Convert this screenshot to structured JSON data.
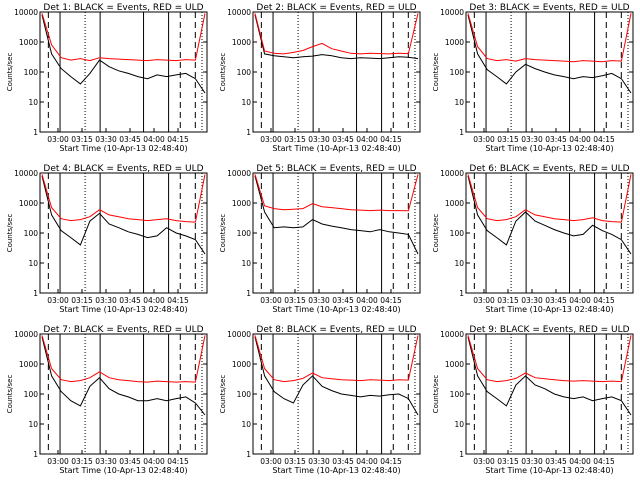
{
  "colors": {
    "events": "#000000",
    "uld": "#ff0000",
    "background": "#ffffff"
  },
  "chart_data": [
    {
      "type": "line",
      "title": "Det 1: BLACK = Events, RED = ULD",
      "xlabel": "Start Time (10-Apr-13 02:48:40)",
      "ylabel": "Counts/sec",
      "x_ticks": [
        "03:00",
        "03:15",
        "03:30",
        "03:45",
        "04:00",
        "04:15"
      ],
      "y_ticks": [
        "1",
        "10",
        "100",
        "1000",
        "10000"
      ],
      "yscale": "log",
      "ylim": [
        1,
        10000
      ],
      "series": [
        {
          "name": "Events",
          "values": [
            8000,
            400,
            130,
            70,
            40,
            90,
            250,
            150,
            110,
            90,
            70,
            60,
            80,
            70,
            80,
            90,
            60,
            20
          ]
        },
        {
          "name": "ULD",
          "values": [
            9000,
            800,
            300,
            250,
            280,
            240,
            300,
            280,
            270,
            260,
            250,
            240,
            260,
            250,
            240,
            260,
            250,
            9000
          ]
        }
      ]
    },
    {
      "type": "line",
      "title": "Det 2: BLACK = Events, RED = ULD",
      "xlabel": "Start Time (10-Apr-13 02:48:40)",
      "ylabel": "Counts/sec",
      "x_ticks": [
        "03:00",
        "03:15",
        "03:30",
        "03:45",
        "04:00",
        "04:15"
      ],
      "y_ticks": [
        "1",
        "10",
        "100",
        "1000",
        "10000"
      ],
      "yscale": "log",
      "ylim": [
        1,
        10000
      ],
      "series": [
        {
          "name": "Events",
          "values": [
            8000,
            400,
            350,
            320,
            300,
            320,
            340,
            380,
            350,
            300,
            280,
            300,
            290,
            280,
            300,
            320,
            310,
            280
          ]
        },
        {
          "name": "ULD",
          "values": [
            9000,
            500,
            420,
            400,
            450,
            520,
            700,
            900,
            600,
            500,
            420,
            400,
            420,
            410,
            400,
            420,
            410,
            9000
          ]
        }
      ]
    },
    {
      "type": "line",
      "title": "Det 3: BLACK = Events, RED = ULD",
      "xlabel": "Start Time (10-Apr-13 02:48:40)",
      "ylabel": "Counts/sec",
      "x_ticks": [
        "03:00",
        "03:15",
        "03:30",
        "03:45",
        "04:00",
        "04:15"
      ],
      "y_ticks": [
        "1",
        "10",
        "100",
        "1000",
        "10000"
      ],
      "yscale": "log",
      "ylim": [
        1,
        10000
      ],
      "series": [
        {
          "name": "Events",
          "values": [
            8000,
            400,
            120,
            70,
            40,
            100,
            180,
            130,
            100,
            80,
            70,
            60,
            70,
            65,
            75,
            90,
            60,
            20
          ]
        },
        {
          "name": "ULD",
          "values": [
            9000,
            700,
            280,
            240,
            260,
            230,
            280,
            260,
            250,
            240,
            230,
            220,
            240,
            230,
            220,
            240,
            230,
            9000
          ]
        }
      ]
    },
    {
      "type": "line",
      "title": "Det 4: BLACK = Events, RED = ULD",
      "xlabel": "Start Time (10-Apr-13 02:48:40)",
      "ylabel": "Counts/sec",
      "x_ticks": [
        "03:00",
        "03:15",
        "03:30",
        "03:45",
        "04:00",
        "04:15"
      ],
      "y_ticks": [
        "1",
        "10",
        "100",
        "1000",
        "10000"
      ],
      "yscale": "log",
      "ylim": [
        1,
        10000
      ],
      "series": [
        {
          "name": "Events",
          "values": [
            8000,
            400,
            120,
            70,
            40,
            250,
            450,
            200,
            150,
            110,
            90,
            70,
            80,
            150,
            100,
            80,
            60,
            20
          ]
        },
        {
          "name": "ULD",
          "values": [
            9000,
            700,
            300,
            260,
            280,
            350,
            600,
            400,
            350,
            300,
            280,
            260,
            280,
            300,
            260,
            240,
            230,
            9000
          ]
        }
      ]
    },
    {
      "type": "line",
      "title": "Det 5: BLACK = Events, RED = ULD",
      "xlabel": "Start Time (10-Apr-13 02:48:40)",
      "ylabel": "Counts/sec",
      "x_ticks": [
        "03:00",
        "03:15",
        "03:30",
        "03:45",
        "04:00",
        "04:15"
      ],
      "y_ticks": [
        "1",
        "10",
        "100",
        "1000",
        "10000"
      ],
      "yscale": "log",
      "ylim": [
        1,
        10000
      ],
      "series": [
        {
          "name": "Events",
          "values": [
            8000,
            500,
            150,
            160,
            150,
            160,
            280,
            200,
            170,
            150,
            130,
            120,
            110,
            130,
            110,
            100,
            90,
            20
          ]
        },
        {
          "name": "ULD",
          "values": [
            9000,
            800,
            650,
            600,
            620,
            650,
            950,
            750,
            700,
            650,
            600,
            580,
            560,
            580,
            560,
            560,
            550,
            9000
          ]
        }
      ]
    },
    {
      "type": "line",
      "title": "Det 6: BLACK = Events, RED = ULD",
      "xlabel": "Start Time (10-Apr-13 02:48:40)",
      "ylabel": "Counts/sec",
      "x_ticks": [
        "03:00",
        "03:15",
        "03:30",
        "03:45",
        "04:00",
        "04:15"
      ],
      "y_ticks": [
        "1",
        "10",
        "100",
        "1000",
        "10000"
      ],
      "yscale": "log",
      "ylim": [
        1,
        10000
      ],
      "series": [
        {
          "name": "Events",
          "values": [
            8000,
            400,
            120,
            70,
            40,
            250,
            500,
            250,
            180,
            130,
            100,
            80,
            90,
            180,
            120,
            90,
            60,
            20
          ]
        },
        {
          "name": "ULD",
          "values": [
            9000,
            700,
            300,
            260,
            280,
            350,
            600,
            400,
            350,
            300,
            280,
            260,
            280,
            320,
            260,
            240,
            230,
            9000
          ]
        }
      ]
    },
    {
      "type": "line",
      "title": "Det 7: BLACK = Events, RED = ULD",
      "xlabel": "Start Time (10-Apr-13 02:48:40)",
      "ylabel": "Counts/sec",
      "x_ticks": [
        "03:00",
        "03:15",
        "03:30",
        "03:45",
        "04:00",
        "04:15"
      ],
      "y_ticks": [
        "1",
        "10",
        "100",
        "1000",
        "10000"
      ],
      "yscale": "log",
      "ylim": [
        1,
        10000
      ],
      "series": [
        {
          "name": "Events",
          "values": [
            8000,
            400,
            120,
            60,
            40,
            180,
            350,
            150,
            100,
            80,
            60,
            60,
            70,
            60,
            70,
            80,
            50,
            20
          ]
        },
        {
          "name": "ULD",
          "values": [
            9000,
            700,
            300,
            260,
            280,
            350,
            550,
            350,
            300,
            280,
            260,
            250,
            270,
            260,
            250,
            260,
            250,
            9000
          ]
        }
      ]
    },
    {
      "type": "line",
      "title": "Det 8: BLACK = Events, RED = ULD",
      "xlabel": "Start Time (10-Apr-13 02:48:40)",
      "ylabel": "Counts/sec",
      "x_ticks": [
        "03:00",
        "03:15",
        "03:30",
        "03:45",
        "04:00",
        "04:15"
      ],
      "y_ticks": [
        "1",
        "10",
        "100",
        "1000",
        "10000"
      ],
      "yscale": "log",
      "ylim": [
        1,
        10000
      ],
      "series": [
        {
          "name": "Events",
          "values": [
            8000,
            400,
            120,
            70,
            50,
            200,
            400,
            180,
            130,
            100,
            90,
            80,
            90,
            85,
            95,
            100,
            70,
            20
          ]
        },
        {
          "name": "ULD",
          "values": [
            9000,
            700,
            300,
            260,
            280,
            330,
            500,
            350,
            320,
            300,
            290,
            280,
            300,
            290,
            280,
            300,
            290,
            9000
          ]
        }
      ]
    },
    {
      "type": "line",
      "title": "Det 9: BLACK = Events, RED = ULD",
      "xlabel": "Start Time (10-Apr-13 02:48:40)",
      "ylabel": "Counts/sec",
      "x_ticks": [
        "03:00",
        "03:15",
        "03:30",
        "03:45",
        "04:00",
        "04:15"
      ],
      "y_ticks": [
        "1",
        "10",
        "100",
        "1000",
        "10000"
      ],
      "yscale": "log",
      "ylim": [
        1,
        10000
      ],
      "series": [
        {
          "name": "Events",
          "values": [
            8000,
            400,
            120,
            70,
            40,
            200,
            400,
            200,
            150,
            100,
            80,
            70,
            80,
            60,
            70,
            80,
            60,
            20
          ]
        },
        {
          "name": "ULD",
          "values": [
            9000,
            700,
            300,
            260,
            280,
            330,
            500,
            350,
            320,
            300,
            280,
            270,
            280,
            270,
            260,
            270,
            260,
            9000
          ]
        }
      ]
    }
  ]
}
